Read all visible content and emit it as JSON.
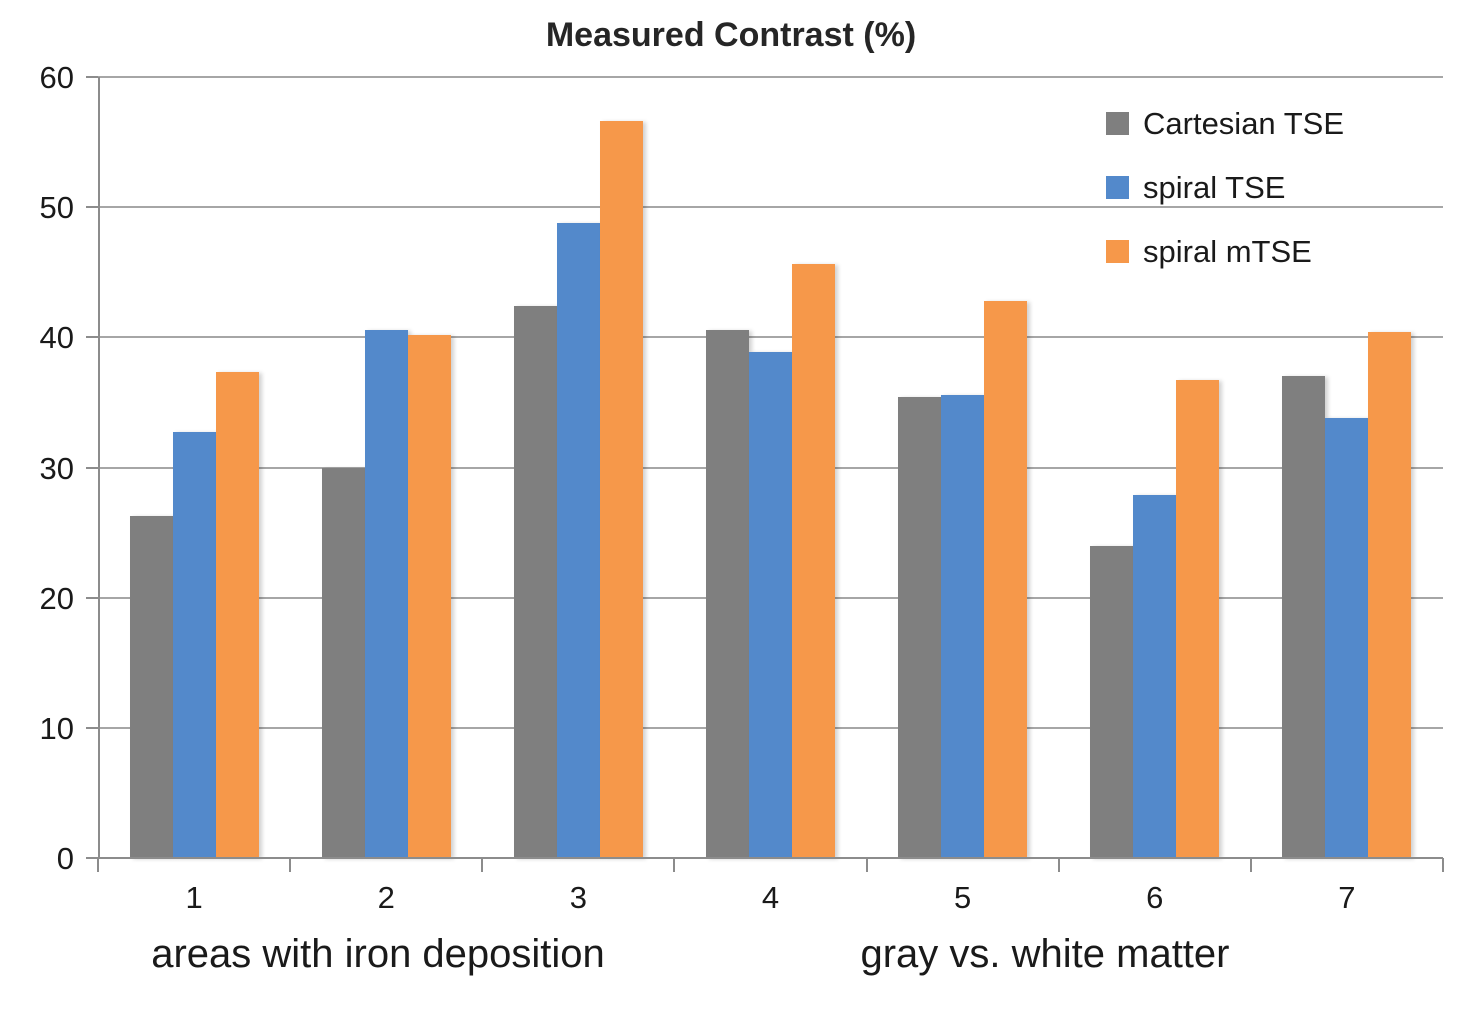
{
  "chart_data": {
    "type": "bar",
    "title": "Measured Contrast (%)",
    "categories": [
      "1",
      "2",
      "3",
      "4",
      "5",
      "6",
      "7"
    ],
    "series": [
      {
        "name": "Cartesian TSE",
        "color": "#7f7f7f",
        "values": [
          26.3,
          30.0,
          42.4,
          40.6,
          35.4,
          24.0,
          37.0
        ]
      },
      {
        "name": "spiral TSE",
        "color": "#5389cb",
        "values": [
          32.7,
          40.6,
          48.8,
          38.9,
          35.6,
          27.9,
          33.8
        ]
      },
      {
        "name": "spiral mTSE",
        "color": "#f6984a",
        "values": [
          37.3,
          40.2,
          56.6,
          45.6,
          42.8,
          36.7,
          40.4
        ]
      }
    ],
    "ylim": [
      0,
      60
    ],
    "yticks": [
      0,
      10,
      20,
      30,
      40,
      50,
      60
    ],
    "grid": true,
    "legend_position": "upper-right",
    "group_captions": [
      "areas with iron deposition",
      "gray vs. white matter"
    ]
  },
  "colors": {
    "gridline": "#a6a6a6",
    "axis": "#8c8c8c",
    "text": "#1a1a1a",
    "title": "#262626",
    "background": "#ffffff"
  }
}
